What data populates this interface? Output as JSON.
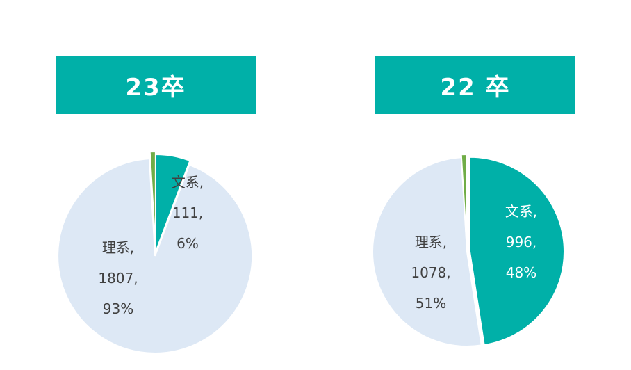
{
  "chart_data": [
    {
      "type": "pie",
      "title": "23卒",
      "slices": [
        {
          "name": "文系",
          "value": 111,
          "percent": 6,
          "color": "#00b0a8",
          "label_value": "111,",
          "label_percent": "6%"
        },
        {
          "name": "理系",
          "value": 1807,
          "percent": 93,
          "color": "#dde8f5",
          "label_value": "1807,",
          "label_percent": "93%"
        },
        {
          "name": "",
          "value": 18,
          "percent": 1,
          "color": "#70ad47"
        }
      ],
      "labels": {
        "bunkei_name": "文系,",
        "rikei_name": "理系,"
      }
    },
    {
      "type": "pie",
      "title": "22 卒",
      "slices": [
        {
          "name": "文系",
          "value": 996,
          "percent": 48,
          "color": "#00b0a8",
          "label_value": "996,",
          "label_percent": "48%"
        },
        {
          "name": "理系",
          "value": 1078,
          "percent": 51,
          "color": "#dde8f5",
          "label_value": "1078,",
          "label_percent": "51%"
        },
        {
          "name": "",
          "value": 20,
          "percent": 1,
          "color": "#70ad47"
        }
      ],
      "labels": {
        "bunkei_name": "文系,",
        "rikei_name": "理系,"
      }
    }
  ]
}
